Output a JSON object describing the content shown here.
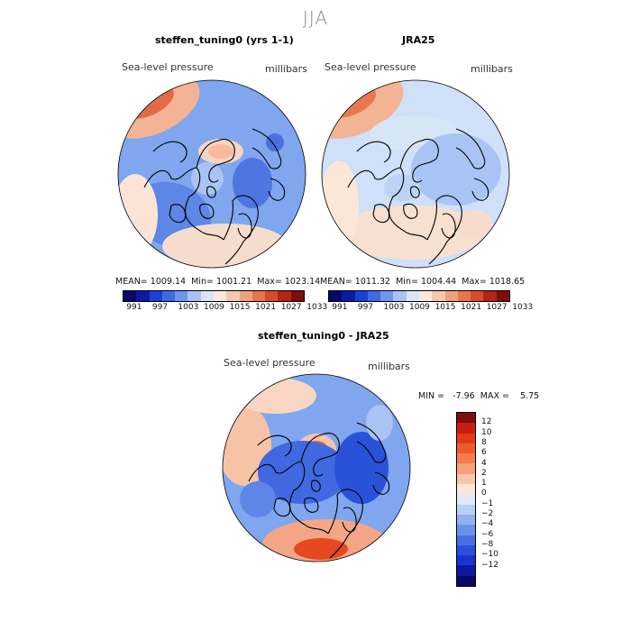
{
  "season": "JJA",
  "panels": [
    {
      "title": "steffen_tuning0 (yrs 1-1)",
      "variable": "Sea-level pressure",
      "units": "millibars",
      "stats": "MEAN= 1009.14  Min= 1001.21  Max= 1023.14"
    },
    {
      "title": "JRA25",
      "variable": "Sea-level pressure",
      "units": "millibars",
      "stats": "MEAN= 1011.32  Min= 1004.44  Max= 1018.65"
    }
  ],
  "diff_panel": {
    "title": "steffen_tuning0 - JRA25",
    "variable": "Sea-level pressure",
    "units": "millibars",
    "stats": "MIN =   -7.96  MAX =    5.75"
  },
  "abs_colorbar": {
    "colors": [
      "#08086b",
      "#0a1aa6",
      "#1c3fd6",
      "#3f69e6",
      "#6f95ee",
      "#a8c3f3",
      "#d7e6f7",
      "#fbe9dc",
      "#f7c8ae",
      "#f1a07d",
      "#e9754f",
      "#d84a2a",
      "#b52312",
      "#7f0d0d"
    ],
    "labels": [
      "991",
      "997",
      "1003",
      "1009",
      "1015",
      "1021",
      "1027",
      "1033"
    ]
  },
  "diff_colorbar": {
    "colors": [
      "#7f0d0d",
      "#c81e0f",
      "#e33a16",
      "#ef5a2c",
      "#f47d4d",
      "#f6a17c",
      "#f7c6ab",
      "#fbe6d8",
      "#dfe9f8",
      "#b8d0f4",
      "#90b3ef",
      "#6b92ea",
      "#476fe3",
      "#2a4fdc",
      "#1a33cb",
      "#0d1a9e",
      "#06086a"
    ],
    "labels": [
      "12",
      "10",
      "8",
      "6",
      "4",
      "2",
      "1",
      "0",
      "−1",
      "−2",
      "−4",
      "−6",
      "−8",
      "−10",
      "−12"
    ]
  },
  "colors": {
    "title_gray": "#888888",
    "coast": "#000000"
  }
}
